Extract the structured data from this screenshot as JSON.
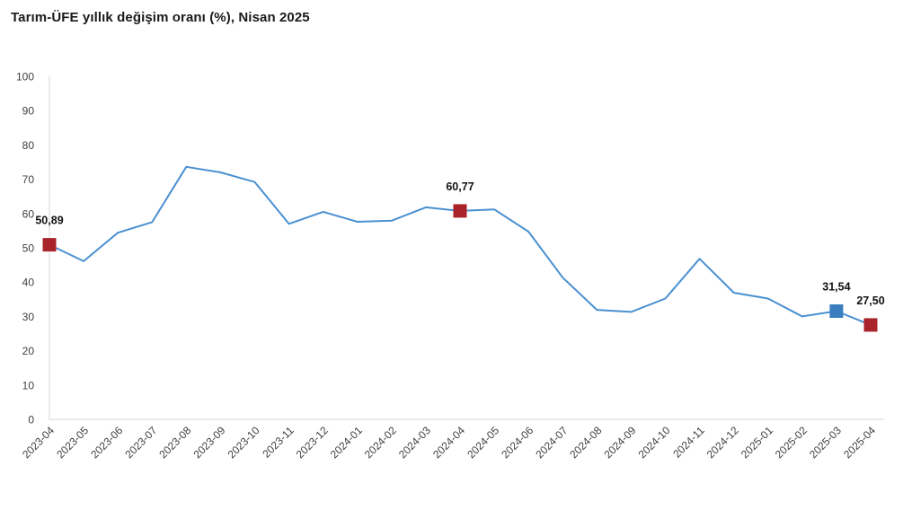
{
  "title": "Tarım-ÜFE yıllık değişim oranı (%), Nisan 2025",
  "colors": {
    "line": "#4a90d1",
    "marker_red": "#a9232a",
    "marker_blue": "#3b7ec0",
    "axis": "#d6d6d6",
    "tick_text": "#404040",
    "title_text": "#1a1a1a",
    "data_label_text": "#111111"
  },
  "chart_data": {
    "type": "line",
    "title": "Tarım-ÜFE yıllık değişim oranı (%), Nisan 2025",
    "xlabel": "",
    "ylabel": "",
    "ylim": [
      0,
      100
    ],
    "ytick_step": 10,
    "grid": false,
    "legend": "none",
    "x": [
      "2023-04",
      "2023-05",
      "2023-06",
      "2023-07",
      "2023-08",
      "2023-09",
      "2023-10",
      "2023-11",
      "2023-12",
      "2024-01",
      "2024-02",
      "2024-03",
      "2024-04",
      "2024-05",
      "2024-06",
      "2024-07",
      "2024-08",
      "2024-09",
      "2024-10",
      "2024-11",
      "2024-12",
      "2025-01",
      "2025-02",
      "2025-03",
      "2025-04"
    ],
    "values": [
      50.89,
      46.1,
      54.4,
      57.5,
      73.6,
      72.0,
      69.2,
      57.0,
      60.5,
      57.6,
      57.9,
      61.8,
      60.77,
      61.2,
      54.7,
      41.3,
      31.9,
      31.3,
      35.2,
      46.8,
      36.9,
      35.2,
      30.0,
      31.54,
      27.5
    ],
    "highlighted_points": [
      {
        "x": "2023-04",
        "value": 50.89,
        "label": "50,89",
        "marker_color": "#a9232a"
      },
      {
        "x": "2024-04",
        "value": 60.77,
        "label": "60,77",
        "marker_color": "#a9232a"
      },
      {
        "x": "2025-03",
        "value": 31.54,
        "label": "31,54",
        "marker_color": "#3b7ec0"
      },
      {
        "x": "2025-04",
        "value": 27.5,
        "label": "27,50",
        "marker_color": "#a9232a"
      }
    ]
  }
}
